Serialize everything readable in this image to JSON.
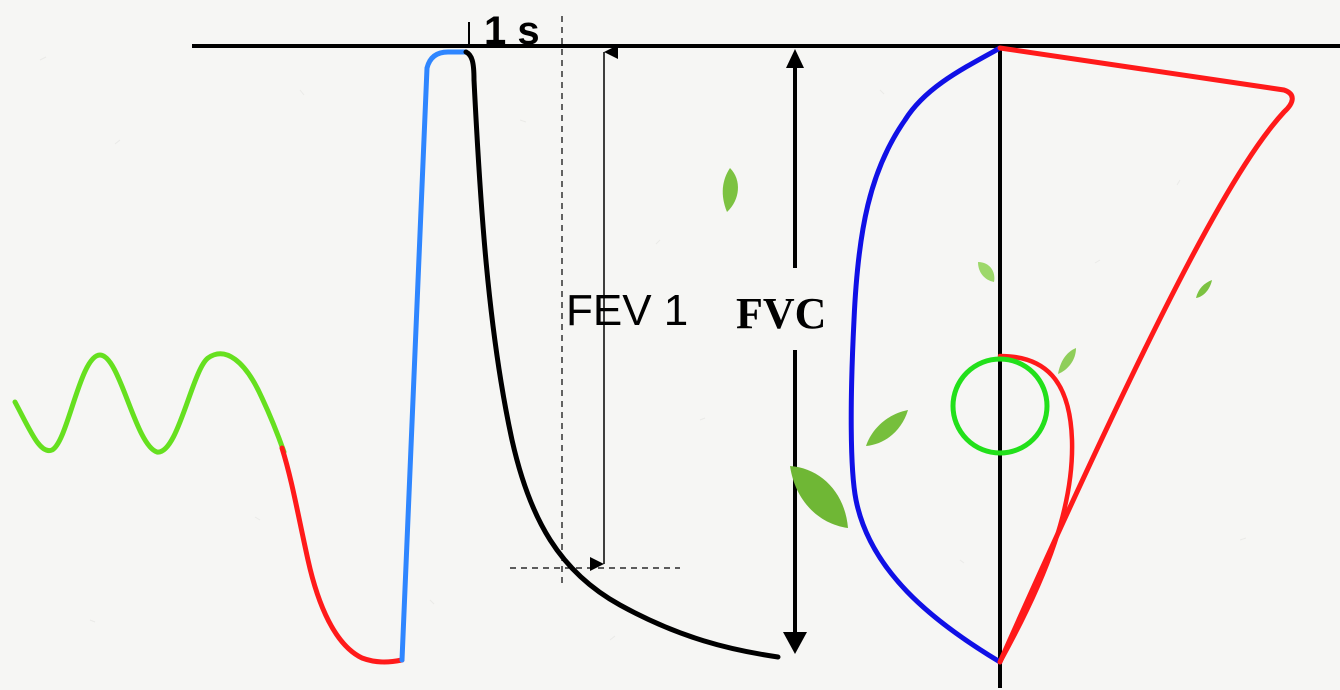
{
  "labels": {
    "time_marker": "1 s",
    "fev1": "FEV 1",
    "fvc": "FVC"
  },
  "colors": {
    "background": "#f6f6f4",
    "axis": "#000000",
    "tidal_breathing": "#66e01f",
    "inspiration_trace": "#ff1a1a",
    "inspiration_rise": "#2f86ff",
    "expiration_trace": "#000000",
    "loop_expiratory": "#1010e6",
    "loop_inspiratory": "#ff1a1a",
    "loop_tidal_circle": "#22e01a",
    "leaf": "#7cc241"
  },
  "icons": [
    "leaf-icon"
  ]
}
